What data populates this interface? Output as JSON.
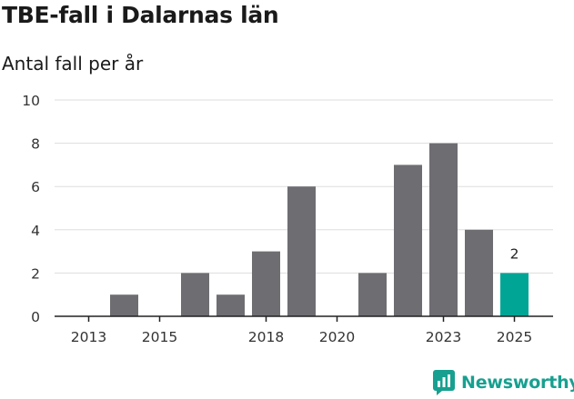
{
  "chart_data": {
    "type": "bar",
    "title": "TBE-fall i Dalarnas län",
    "subtitle": "Antal fall per år",
    "xlabel": "",
    "ylabel": "",
    "categories": [
      2013,
      2014,
      2015,
      2016,
      2017,
      2018,
      2019,
      2020,
      2021,
      2022,
      2023,
      2024,
      2025
    ],
    "values": [
      0,
      1,
      0,
      2,
      1,
      3,
      6,
      0,
      2,
      7,
      8,
      4,
      2
    ],
    "x_tick_labels": [
      "2013",
      "2015",
      "2018",
      "2020",
      "2023",
      "2025"
    ],
    "y_tick_labels": [
      "0",
      "2",
      "4",
      "6",
      "8",
      "10"
    ],
    "ylim": [
      0,
      10
    ],
    "grid": true,
    "highlight_index": 12,
    "highlight_label": "2",
    "colors": {
      "bar": "#6e6d72",
      "highlight": "#00a596",
      "grid": "#dddddd",
      "axis": "#222222"
    }
  },
  "branding": {
    "name": "Newsworthy",
    "color": "#17a090"
  }
}
